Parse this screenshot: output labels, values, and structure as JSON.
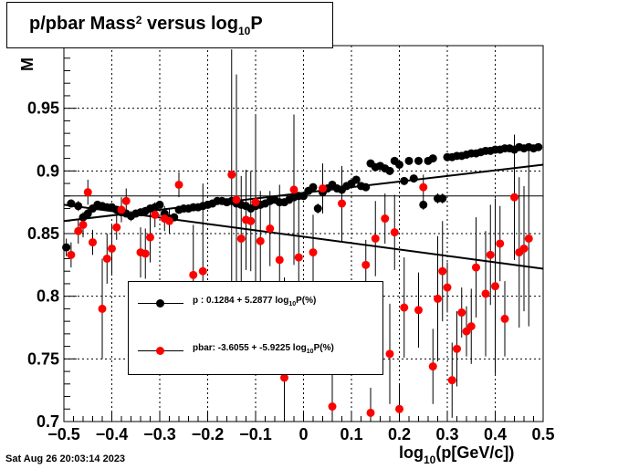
{
  "title": {
    "prefix": "p/pbar Mass",
    "sup": "2",
    "middle": " versus log",
    "sub": "10",
    "suffix": "P"
  },
  "timestamp": "Sat Aug 26 20:03:14 2023",
  "xaxis_title": {
    "prefix": "log",
    "sub": "10",
    "suffix": "(p[GeV/c])"
  },
  "yaxis_title": "M",
  "legend": [
    {
      "name": "p",
      "text_prefix": "p   : 0.1284 + 5.2877 log",
      "sub": "10",
      "text_suffix": "P(%)",
      "color": "#000000"
    },
    {
      "name": "pbar",
      "text_prefix": "pbar: -3.6055 + -5.9225 log",
      "sub": "10",
      "text_suffix": "P(%)",
      "color": "#ff0000"
    }
  ],
  "colors": {
    "p": "#000000",
    "pbar": "#ff0000",
    "grid": "#000000"
  },
  "chart_data": {
    "type": "scatter",
    "title": "p/pbar Mass^2 versus log10P",
    "xlabel": "log10(p[GeV/c])",
    "ylabel": "M",
    "xlim": [
      -0.5,
      0.5
    ],
    "ylim": [
      0.7,
      1.0
    ],
    "xticks": [
      -0.5,
      -0.4,
      -0.3,
      -0.2,
      -0.1,
      0,
      0.1,
      0.2,
      0.3,
      0.4,
      0.5
    ],
    "xtick_labels": [
      "−0.5",
      "−0.4",
      "−0.3",
      "−0.2",
      "−0.1",
      "0",
      "0.1",
      "0.2",
      "0.3",
      "0.4",
      "0.5"
    ],
    "yticks": [
      0.7,
      0.75,
      0.8,
      0.85,
      0.9,
      0.95
    ],
    "ytick_labels": [
      "0.7",
      "0.75",
      "0.8",
      "0.85",
      "0.9",
      "0.95"
    ],
    "grid": true,
    "legend_position": "lower-left",
    "reference_line": 0.88,
    "series": [
      {
        "name": "p",
        "color": "#000000",
        "fit": {
          "x": [
            -0.5,
            0.5
          ],
          "y": [
            0.86,
            0.905
          ]
        },
        "points": [
          [
            -0.495,
            0.839,
            0.007
          ],
          [
            -0.485,
            0.874,
            0.003
          ],
          [
            -0.47,
            0.872,
            0.004
          ],
          [
            -0.46,
            0.863,
            0.004
          ],
          [
            -0.45,
            0.866,
            0.004
          ],
          [
            -0.44,
            0.87,
            0.003
          ],
          [
            -0.43,
            0.873,
            0.003
          ],
          [
            -0.42,
            0.872,
            0.003
          ],
          [
            -0.41,
            0.871,
            0.003
          ],
          [
            -0.4,
            0.871,
            0.003
          ],
          [
            -0.39,
            0.869,
            0.003
          ],
          [
            -0.38,
            0.867,
            0.003
          ],
          [
            -0.37,
            0.866,
            0.003
          ],
          [
            -0.36,
            0.864,
            0.004
          ],
          [
            -0.35,
            0.866,
            0.003
          ],
          [
            -0.34,
            0.867,
            0.003
          ],
          [
            -0.33,
            0.868,
            0.003
          ],
          [
            -0.32,
            0.87,
            0.003
          ],
          [
            -0.31,
            0.871,
            0.003
          ],
          [
            -0.3,
            0.873,
            0.003
          ],
          [
            -0.29,
            0.866,
            0.003
          ],
          [
            -0.28,
            0.862,
            0.003
          ],
          [
            -0.27,
            0.863,
            0.003
          ],
          [
            -0.26,
            0.869,
            0.003
          ],
          [
            -0.25,
            0.87,
            0.003
          ],
          [
            -0.24,
            0.87,
            0.003
          ],
          [
            -0.23,
            0.871,
            0.003
          ],
          [
            -0.22,
            0.871,
            0.003
          ],
          [
            -0.21,
            0.872,
            0.003
          ],
          [
            -0.2,
            0.873,
            0.003
          ],
          [
            -0.19,
            0.874,
            0.003
          ],
          [
            -0.18,
            0.876,
            0.003
          ],
          [
            -0.17,
            0.876,
            0.003
          ],
          [
            -0.16,
            0.875,
            0.003
          ],
          [
            -0.15,
            0.876,
            0.003
          ],
          [
            -0.14,
            0.874,
            0.003
          ],
          [
            -0.13,
            0.873,
            0.003
          ],
          [
            -0.12,
            0.872,
            0.003
          ],
          [
            -0.11,
            0.87,
            0.003
          ],
          [
            -0.1,
            0.872,
            0.003
          ],
          [
            -0.09,
            0.873,
            0.003
          ],
          [
            -0.08,
            0.874,
            0.003
          ],
          [
            -0.07,
            0.876,
            0.003
          ],
          [
            -0.06,
            0.877,
            0.003
          ],
          [
            -0.05,
            0.875,
            0.003
          ],
          [
            -0.04,
            0.875,
            0.003
          ],
          [
            -0.03,
            0.877,
            0.003
          ],
          [
            -0.02,
            0.879,
            0.003
          ],
          [
            -0.01,
            0.88,
            0.003
          ],
          [
            0.0,
            0.88,
            0.003
          ],
          [
            0.01,
            0.884,
            0.003
          ],
          [
            0.02,
            0.887,
            0.003
          ],
          [
            0.03,
            0.87,
            0.004
          ],
          [
            0.04,
            0.883,
            0.003
          ],
          [
            0.05,
            0.886,
            0.003
          ],
          [
            0.06,
            0.889,
            0.003
          ],
          [
            0.07,
            0.886,
            0.003
          ],
          [
            0.08,
            0.885,
            0.003
          ],
          [
            0.09,
            0.888,
            0.003
          ],
          [
            0.1,
            0.89,
            0.003
          ],
          [
            0.11,
            0.893,
            0.003
          ],
          [
            0.12,
            0.888,
            0.003
          ],
          [
            0.13,
            0.887,
            0.003
          ],
          [
            0.14,
            0.906,
            0.003
          ],
          [
            0.15,
            0.903,
            0.003
          ],
          [
            0.16,
            0.904,
            0.003
          ],
          [
            0.17,
            0.902,
            0.003
          ],
          [
            0.18,
            0.9,
            0.003
          ],
          [
            0.19,
            0.908,
            0.003
          ],
          [
            0.2,
            0.905,
            0.003
          ],
          [
            0.21,
            0.892,
            0.003
          ],
          [
            0.22,
            0.908,
            0.003
          ],
          [
            0.23,
            0.894,
            0.003
          ],
          [
            0.24,
            0.908,
            0.003
          ],
          [
            0.25,
            0.873,
            0.004
          ],
          [
            0.26,
            0.908,
            0.003
          ],
          [
            0.27,
            0.91,
            0.003
          ],
          [
            0.28,
            0.878,
            0.004
          ],
          [
            0.29,
            0.878,
            0.004
          ],
          [
            0.3,
            0.911,
            0.003
          ],
          [
            0.31,
            0.911,
            0.003
          ],
          [
            0.32,
            0.912,
            0.003
          ],
          [
            0.33,
            0.912,
            0.003
          ],
          [
            0.34,
            0.913,
            0.003
          ],
          [
            0.35,
            0.914,
            0.003
          ],
          [
            0.36,
            0.914,
            0.003
          ],
          [
            0.37,
            0.915,
            0.003
          ],
          [
            0.38,
            0.916,
            0.003
          ],
          [
            0.39,
            0.916,
            0.003
          ],
          [
            0.4,
            0.917,
            0.003
          ],
          [
            0.41,
            0.917,
            0.003
          ],
          [
            0.42,
            0.918,
            0.003
          ],
          [
            0.43,
            0.918,
            0.003
          ],
          [
            0.44,
            0.917,
            0.003
          ],
          [
            0.45,
            0.919,
            0.003
          ],
          [
            0.46,
            0.918,
            0.003
          ],
          [
            0.47,
            0.919,
            0.003
          ],
          [
            0.48,
            0.918,
            0.003
          ],
          [
            0.49,
            0.919,
            0.003
          ]
        ]
      },
      {
        "name": "pbar",
        "color": "#ff0000",
        "fit": {
          "x": [
            -0.5,
            0.5
          ],
          "y": [
            0.873,
            0.822
          ]
        },
        "points": [
          [
            -0.485,
            0.833,
            0.01
          ],
          [
            -0.47,
            0.852,
            0.01
          ],
          [
            -0.46,
            0.857,
            0.01
          ],
          [
            -0.45,
            0.883,
            0.01
          ],
          [
            -0.44,
            0.843,
            0.01
          ],
          [
            -0.42,
            0.79,
            0.04
          ],
          [
            -0.41,
            0.83,
            0.02
          ],
          [
            -0.4,
            0.838,
            0.02
          ],
          [
            -0.39,
            0.855,
            0.01
          ],
          [
            -0.38,
            0.869,
            0.01
          ],
          [
            -0.37,
            0.876,
            0.01
          ],
          [
            -0.34,
            0.835,
            0.02
          ],
          [
            -0.33,
            0.834,
            0.02
          ],
          [
            -0.32,
            0.847,
            0.02
          ],
          [
            -0.31,
            0.865,
            0.01
          ],
          [
            -0.29,
            0.862,
            0.01
          ],
          [
            -0.28,
            0.86,
            0.01
          ],
          [
            -0.26,
            0.889,
            0.01
          ],
          [
            -0.23,
            0.817,
            0.04
          ],
          [
            -0.21,
            0.82,
            0.07
          ],
          [
            -0.15,
            0.897,
            0.1
          ],
          [
            -0.14,
            0.877,
            0.1
          ],
          [
            -0.13,
            0.846,
            0.05
          ],
          [
            -0.12,
            0.861,
            0.04
          ],
          [
            -0.11,
            0.86,
            0.04
          ],
          [
            -0.1,
            0.875,
            0.07
          ],
          [
            -0.09,
            0.844,
            0.04
          ],
          [
            -0.07,
            0.854,
            0.03
          ],
          [
            -0.05,
            0.829,
            0.06
          ],
          [
            -0.04,
            0.735,
            0.08
          ],
          [
            -0.02,
            0.885,
            0.06
          ],
          [
            -0.01,
            0.831,
            0.05
          ],
          [
            0.02,
            0.835,
            0.03
          ],
          [
            0.04,
            0.886,
            0.02
          ],
          [
            0.06,
            0.712,
            0.08
          ],
          [
            0.08,
            0.874,
            0.03
          ],
          [
            0.13,
            0.825,
            0.02
          ],
          [
            0.14,
            0.707,
            0.02
          ],
          [
            0.15,
            0.846,
            0.03
          ],
          [
            0.17,
            0.862,
            0.02
          ],
          [
            0.18,
            0.754,
            0.04
          ],
          [
            0.19,
            0.851,
            0.03
          ],
          [
            0.2,
            0.71,
            0.02
          ],
          [
            0.21,
            0.791,
            0.04
          ],
          [
            0.24,
            0.789,
            0.03
          ],
          [
            0.25,
            0.887,
            0.01
          ],
          [
            0.27,
            0.744,
            0.03
          ],
          [
            0.28,
            0.798,
            0.05
          ],
          [
            0.29,
            0.82,
            0.04
          ],
          [
            0.3,
            0.807,
            0.02
          ],
          [
            0.31,
            0.733,
            0.03
          ],
          [
            0.32,
            0.758,
            0.03
          ],
          [
            0.33,
            0.787,
            0.02
          ],
          [
            0.34,
            0.772,
            0.02
          ],
          [
            0.35,
            0.776,
            0.03
          ],
          [
            0.36,
            0.823,
            0.04
          ],
          [
            0.38,
            0.802,
            0.05
          ],
          [
            0.39,
            0.833,
            0.04
          ],
          [
            0.4,
            0.808,
            0.07
          ],
          [
            0.41,
            0.842,
            0.03
          ],
          [
            0.42,
            0.782,
            0.03
          ],
          [
            0.44,
            0.879,
            0.05
          ],
          [
            0.45,
            0.835,
            0.06
          ],
          [
            0.46,
            0.838,
            0.05
          ],
          [
            0.47,
            0.846,
            0.07
          ]
        ]
      }
    ]
  }
}
